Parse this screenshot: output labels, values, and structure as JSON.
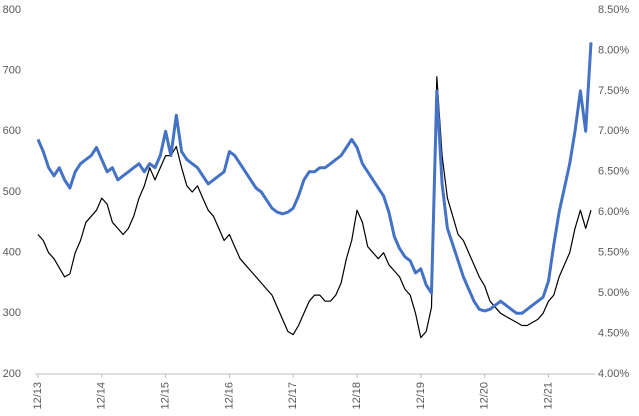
{
  "chart_data": {
    "type": "line",
    "categories": [
      "12/13",
      null,
      null,
      null,
      null,
      null,
      null,
      null,
      null,
      null,
      null,
      null,
      "12/14",
      null,
      null,
      null,
      null,
      null,
      null,
      null,
      null,
      null,
      null,
      null,
      "12/15",
      null,
      null,
      null,
      null,
      null,
      null,
      null,
      null,
      null,
      null,
      null,
      "12/16",
      null,
      null,
      null,
      null,
      null,
      null,
      null,
      null,
      null,
      null,
      null,
      "12/17",
      null,
      null,
      null,
      null,
      null,
      null,
      null,
      null,
      null,
      null,
      null,
      "12/18",
      null,
      null,
      null,
      null,
      null,
      null,
      null,
      null,
      null,
      null,
      null,
      "12/19",
      null,
      null,
      null,
      null,
      null,
      null,
      null,
      null,
      null,
      null,
      null,
      "12/20",
      null,
      null,
      null,
      null,
      null,
      null,
      null,
      null,
      null,
      null,
      null,
      "12/21",
      null,
      null,
      null,
      null,
      null,
      null,
      null,
      null
    ],
    "series": [
      {
        "color": "#000000",
        "axis": "y",
        "values": [
          430,
          420,
          400,
          390,
          375,
          360,
          365,
          400,
          420,
          450,
          460,
          470,
          490,
          480,
          450,
          440,
          430,
          440,
          460,
          490,
          510,
          540,
          520,
          540,
          560,
          560,
          575,
          540,
          510,
          500,
          510,
          490,
          470,
          460,
          440,
          420,
          430,
          410,
          390,
          380,
          370,
          360,
          350,
          340,
          330,
          310,
          290,
          270,
          265,
          280,
          300,
          320,
          330,
          330,
          320,
          320,
          330,
          350,
          390,
          420,
          470,
          450,
          410,
          400,
          390,
          400,
          380,
          370,
          360,
          340,
          330,
          300,
          260,
          270,
          310,
          690,
          560,
          490,
          460,
          430,
          420,
          400,
          380,
          360,
          345,
          320,
          310,
          300,
          295,
          290,
          285,
          280,
          280,
          285,
          290,
          300,
          320,
          330,
          360,
          380,
          400,
          440,
          470,
          440,
          470
        ]
      },
      {
        "color": "#4472c4",
        "axis": "y2",
        "values": [
          6.9,
          6.75,
          6.55,
          6.45,
          6.55,
          6.4,
          6.3,
          6.5,
          6.6,
          6.65,
          6.7,
          6.8,
          6.65,
          6.5,
          6.55,
          6.4,
          6.45,
          6.5,
          6.55,
          6.6,
          6.5,
          6.6,
          6.55,
          6.7,
          7.0,
          6.7,
          7.2,
          6.75,
          6.65,
          6.6,
          6.55,
          6.45,
          6.35,
          6.4,
          6.45,
          6.5,
          6.75,
          6.7,
          6.6,
          6.5,
          6.4,
          6.3,
          6.25,
          6.15,
          6.05,
          6.0,
          5.98,
          6.0,
          6.05,
          6.2,
          6.4,
          6.5,
          6.5,
          6.55,
          6.55,
          6.6,
          6.65,
          6.7,
          6.8,
          6.9,
          6.8,
          6.6,
          6.5,
          6.4,
          6.3,
          6.2,
          6.0,
          5.7,
          5.55,
          5.45,
          5.4,
          5.25,
          5.3,
          5.1,
          5.0,
          7.5,
          6.35,
          5.8,
          5.6,
          5.4,
          5.2,
          5.05,
          4.9,
          4.8,
          4.78,
          4.8,
          4.85,
          4.9,
          4.85,
          4.8,
          4.75,
          4.75,
          4.8,
          4.85,
          4.9,
          4.95,
          5.15,
          5.6,
          6.0,
          6.3,
          6.6,
          7.0,
          7.5,
          7.0,
          8.1
        ]
      }
    ],
    "ylim": [
      200,
      800
    ],
    "yticks": [
      200,
      300,
      400,
      500,
      600,
      700,
      800
    ],
    "y2lim": [
      4,
      8.5
    ],
    "y2ticks": [
      {
        "value": 4,
        "label": "4.00%"
      },
      {
        "value": 4.5,
        "label": "4.50%"
      },
      {
        "value": 5,
        "label": "5.00%"
      },
      {
        "value": 5.5,
        "label": "5.50%"
      },
      {
        "value": 6,
        "label": "6.00%"
      },
      {
        "value": 6.5,
        "label": "6.50%"
      },
      {
        "value": 7,
        "label": "7.00%"
      },
      {
        "value": 7.5,
        "label": "7.50%"
      },
      {
        "value": 8,
        "label": "8.00%"
      },
      {
        "value": 8.5,
        "label": "8.50%"
      }
    ],
    "grid": false
  }
}
